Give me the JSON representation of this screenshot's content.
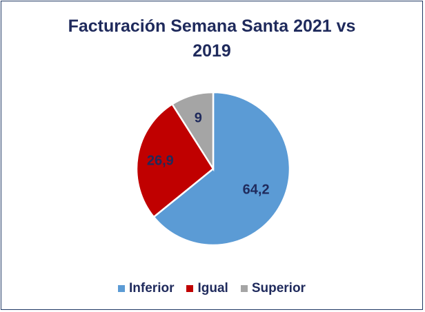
{
  "chart_data": {
    "type": "pie",
    "title_lines": [
      "Facturación Semana Santa 2021 vs",
      "2019"
    ],
    "slices": [
      {
        "name": "Inferior",
        "value": 64.2,
        "label": "64,2",
        "color": "#5b9bd5"
      },
      {
        "name": "Igual",
        "value": 26.9,
        "label": "26,9",
        "color": "#c00000"
      },
      {
        "name": "Superior",
        "value": 9,
        "label": "9",
        "color": "#a5a5a5"
      }
    ],
    "legend_position": "bottom",
    "label_color": "#1f2a5c"
  }
}
